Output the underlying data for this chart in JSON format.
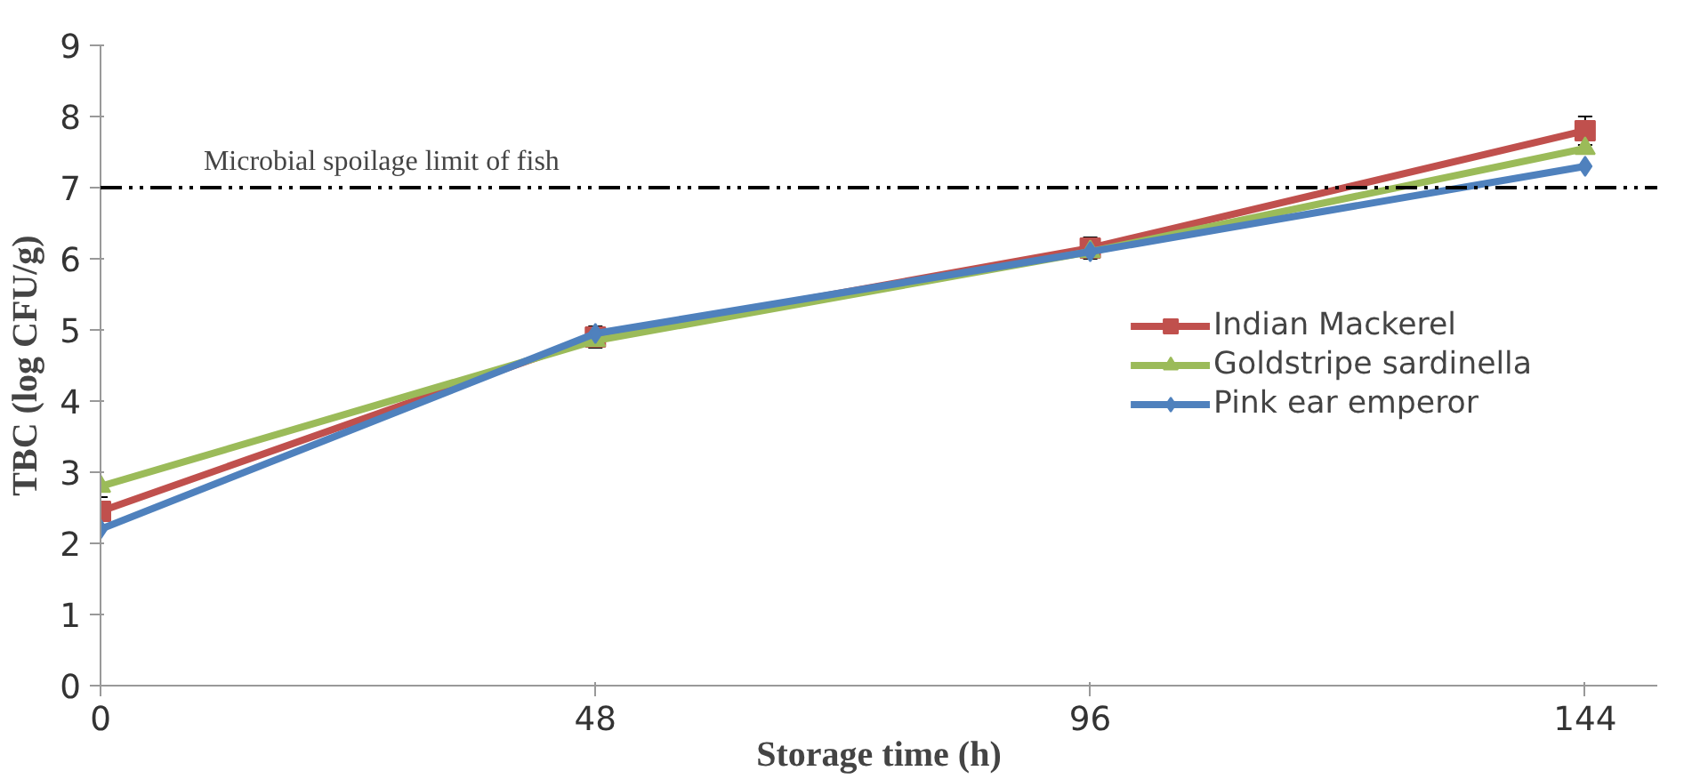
{
  "chart_data": {
    "type": "line",
    "xlabel": "Storage time (h)",
    "ylabel": "TBC (log CFU/g)",
    "x": [
      0,
      48,
      96,
      144
    ],
    "xlim": [
      0,
      151
    ],
    "xticks": [
      0,
      48,
      96,
      144
    ],
    "ylim": [
      0,
      9
    ],
    "yticks": [
      0,
      1,
      2,
      3,
      4,
      5,
      6,
      7,
      8,
      9
    ],
    "series": [
      {
        "name": "Indian Mackerel",
        "color": "#c0504d",
        "marker": "square",
        "values": [
          2.45,
          4.9,
          6.15,
          7.8
        ],
        "errors": [
          0.2,
          0.15,
          0.15,
          0.2
        ]
      },
      {
        "name": "Goldstripe sardinella",
        "color": "#9bbb59",
        "marker": "triangle",
        "values": [
          2.8,
          4.85,
          6.1,
          7.55
        ]
      },
      {
        "name": "Pink ear emperor",
        "color": "#4f81bd",
        "marker": "diamond",
        "values": [
          2.2,
          4.95,
          6.1,
          7.3
        ]
      }
    ],
    "ref_lines": [
      {
        "axis": "y",
        "value": 7,
        "label": "Microbial spoilage limit of fish",
        "color": "#000000",
        "line_style": "dashed"
      }
    ],
    "grid": false,
    "legend": "right",
    "line_style": "solid"
  }
}
